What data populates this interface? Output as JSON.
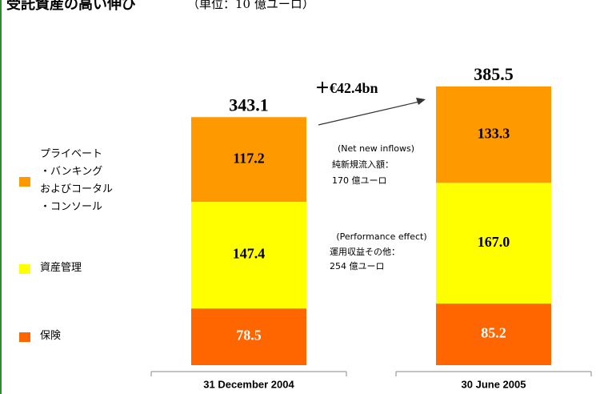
{
  "chart_data": {
    "type": "stacked_bar",
    "title": "受託資産の高い伸び",
    "subtitle": "（単位：10 億ユーロ）",
    "categories": [
      "31 December 2004",
      "30 June 2005"
    ],
    "series": [
      {
        "name": "保険",
        "color": "#ff6600",
        "values": [
          78.5,
          85.2
        ]
      },
      {
        "name": "資産管理",
        "color": "#ffff00",
        "values": [
          147.4,
          167
        ],
        "value_labels": [
          "147.4",
          "167.0"
        ]
      },
      {
        "name": "プライベート\n・バンキング\nおよびコータル\n・コンソール",
        "color": "#ff9900",
        "values": [
          117.2,
          133.3
        ]
      }
    ],
    "totals": [
      343.1,
      385.5
    ],
    "annotations": {
      "change": "＋€42.4bn",
      "inflows_en": "(Net new inflows)",
      "inflows_jp": "純新規流入額：",
      "inflows_value": "170 億ユーロ",
      "performance_en": "(Performance effect)",
      "performance_jp": "運用収益その他：",
      "performance_value": "254 億ユーロ"
    }
  }
}
